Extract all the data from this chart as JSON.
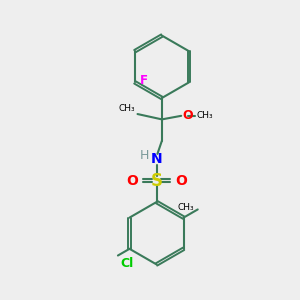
{
  "background_color": "#eeeeee",
  "bond_color": "#3a7a5a",
  "atom_colors": {
    "F": "#ff00ff",
    "O": "#ff0000",
    "N": "#0000ff",
    "S": "#cccc00",
    "Cl": "#00cc00",
    "H": "#7a9a9a",
    "C": "#000000"
  },
  "figsize": [
    3.0,
    3.0
  ],
  "dpi": 100,
  "xlim": [
    0,
    10
  ],
  "ylim": [
    0,
    10
  ]
}
